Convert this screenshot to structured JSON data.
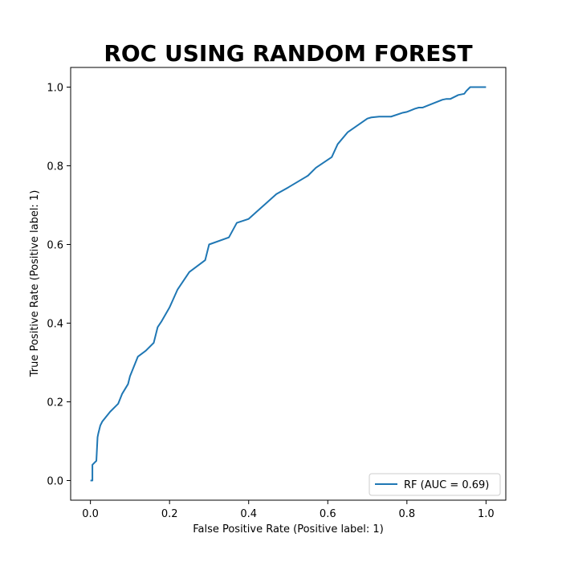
{
  "chart_data": {
    "type": "line",
    "title": "ROC USING RANDOM FOREST",
    "xlabel": "False Positive Rate (Positive label: 1)",
    "ylabel": "True Positive Rate (Positive label: 1)",
    "xlim": [
      -0.05,
      1.05
    ],
    "ylim": [
      -0.05,
      1.05
    ],
    "xticks": [
      "0.0",
      "0.2",
      "0.4",
      "0.6",
      "0.8",
      "1.0"
    ],
    "yticks": [
      "0.0",
      "0.2",
      "0.4",
      "0.6",
      "0.8",
      "1.0"
    ],
    "grid": false,
    "legend_position": "lower-right",
    "series": [
      {
        "name": "RF (AUC = 0.69)",
        "color": "#1f77b4",
        "x": [
          0.0,
          0.005,
          0.005,
          0.01,
          0.015,
          0.018,
          0.02,
          0.025,
          0.03,
          0.05,
          0.07,
          0.08,
          0.095,
          0.1,
          0.12,
          0.14,
          0.16,
          0.17,
          0.18,
          0.2,
          0.22,
          0.25,
          0.29,
          0.3,
          0.35,
          0.37,
          0.4,
          0.43,
          0.47,
          0.5,
          0.55,
          0.57,
          0.61,
          0.625,
          0.65,
          0.7,
          0.71,
          0.73,
          0.76,
          0.79,
          0.8,
          0.82,
          0.83,
          0.84,
          0.87,
          0.89,
          0.9,
          0.91,
          0.93,
          0.94,
          0.945,
          0.95,
          0.96,
          0.98,
          1.0
        ],
        "y": [
          0.0,
          0.0,
          0.04,
          0.045,
          0.05,
          0.11,
          0.12,
          0.14,
          0.15,
          0.175,
          0.195,
          0.22,
          0.245,
          0.265,
          0.315,
          0.33,
          0.35,
          0.39,
          0.405,
          0.44,
          0.485,
          0.53,
          0.56,
          0.6,
          0.618,
          0.655,
          0.665,
          0.692,
          0.728,
          0.745,
          0.775,
          0.795,
          0.822,
          0.855,
          0.885,
          0.92,
          0.923,
          0.925,
          0.925,
          0.935,
          0.937,
          0.945,
          0.948,
          0.948,
          0.96,
          0.968,
          0.97,
          0.97,
          0.98,
          0.982,
          0.983,
          0.99,
          1.0,
          1.0,
          1.0
        ]
      }
    ]
  }
}
